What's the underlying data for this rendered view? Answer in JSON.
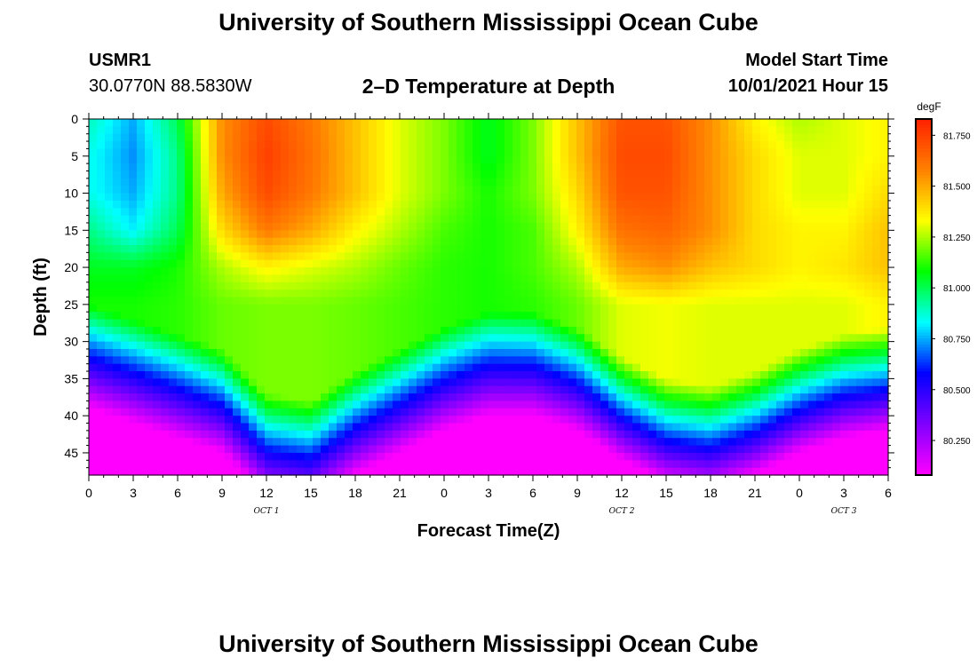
{
  "page": {
    "title_top": "University of Southern Mississippi Ocean Cube",
    "title_bottom": "University of Southern Mississippi Ocean Cube",
    "station_id": "USMR1",
    "station_coords": "30.0770N  88.5830W",
    "model_start_label": "Model Start Time",
    "model_start_value": "10/01/2021 Hour 15"
  },
  "chart_data": {
    "type": "heatmap",
    "title": "2–D Temperature at Depth",
    "xlabel": "Forecast Time(Z)",
    "ylabel": "Depth (ft)",
    "x_range_hours": [
      0,
      54
    ],
    "x_tick_values": [
      0,
      3,
      6,
      9,
      12,
      15,
      18,
      21,
      24,
      27,
      30,
      33,
      36,
      39,
      42,
      45,
      48,
      51,
      54
    ],
    "x_tick_labels": [
      "0",
      "3",
      "6",
      "9",
      "12",
      "15",
      "18",
      "21",
      "0",
      "3",
      "6",
      "9",
      "12",
      "15",
      "18",
      "21",
      "0",
      "3",
      "6"
    ],
    "date_labels": [
      {
        "text": "OCT 1",
        "hour": 12
      },
      {
        "text": "OCT 2",
        "hour": 36
      },
      {
        "text": "OCT 3",
        "hour": 51
      }
    ],
    "ylim": [
      0,
      48
    ],
    "y_reversed": true,
    "y_ticks": [
      0,
      5,
      10,
      15,
      20,
      25,
      30,
      35,
      40,
      45
    ],
    "colorbar": {
      "unit": "degF",
      "range": [
        80.08,
        81.83
      ],
      "ticks": [
        "81.750",
        "81.500",
        "81.250",
        "81.000",
        "80.750",
        "80.500",
        "80.250"
      ],
      "tick_values": [
        81.75,
        81.5,
        81.25,
        81.0,
        80.75,
        80.5,
        80.25
      ],
      "colors": [
        "#ff00ff",
        "#8000ff",
        "#0000ff",
        "#00ffff",
        "#00ff00",
        "#ffff00",
        "#ff8000",
        "#ff2000"
      ]
    },
    "columns_hours": [
      0,
      3,
      6,
      9,
      12,
      15,
      18,
      21,
      24,
      27,
      30,
      33,
      36,
      39,
      42,
      45,
      48,
      51,
      54
    ],
    "thermocline_depth_ft": [
      27,
      29,
      31,
      33,
      39,
      40,
      36,
      33,
      30,
      28,
      28,
      30,
      34,
      37,
      38,
      36,
      33,
      31,
      30
    ],
    "surface_layer": {
      "depth_ft": [
        0,
        5,
        10,
        15,
        20,
        25
      ],
      "rows_degF": [
        [
          80.9,
          80.75,
          81.0,
          81.55,
          81.72,
          81.6,
          81.45,
          81.3,
          81.2,
          81.05,
          81.2,
          81.45,
          81.7,
          81.7,
          81.55,
          81.35,
          81.25,
          81.3,
          81.35
        ],
        [
          80.85,
          80.72,
          80.95,
          81.55,
          81.75,
          81.62,
          81.45,
          81.3,
          81.2,
          81.05,
          81.2,
          81.45,
          81.72,
          81.72,
          81.55,
          81.4,
          81.3,
          81.3,
          81.35
        ],
        [
          80.85,
          80.75,
          80.95,
          81.5,
          81.72,
          81.6,
          81.45,
          81.3,
          81.2,
          81.1,
          81.2,
          81.4,
          81.7,
          81.7,
          81.55,
          81.4,
          81.3,
          81.3,
          81.4
        ],
        [
          80.95,
          80.82,
          81.0,
          81.4,
          81.6,
          81.5,
          81.35,
          81.25,
          81.15,
          81.1,
          81.15,
          81.35,
          81.62,
          81.65,
          81.55,
          81.4,
          81.35,
          81.35,
          81.45
        ],
        [
          81.05,
          81.05,
          81.1,
          81.25,
          81.35,
          81.3,
          81.25,
          81.18,
          81.12,
          81.1,
          81.15,
          81.25,
          81.5,
          81.55,
          81.45,
          81.4,
          81.35,
          81.38,
          81.45
        ],
        [
          81.1,
          81.1,
          81.12,
          81.18,
          81.2,
          81.2,
          81.18,
          81.15,
          81.12,
          81.1,
          81.12,
          81.18,
          81.3,
          81.32,
          81.3,
          81.3,
          81.3,
          81.3,
          81.35
        ]
      ]
    },
    "bottom_temp_degF": 80.08
  }
}
